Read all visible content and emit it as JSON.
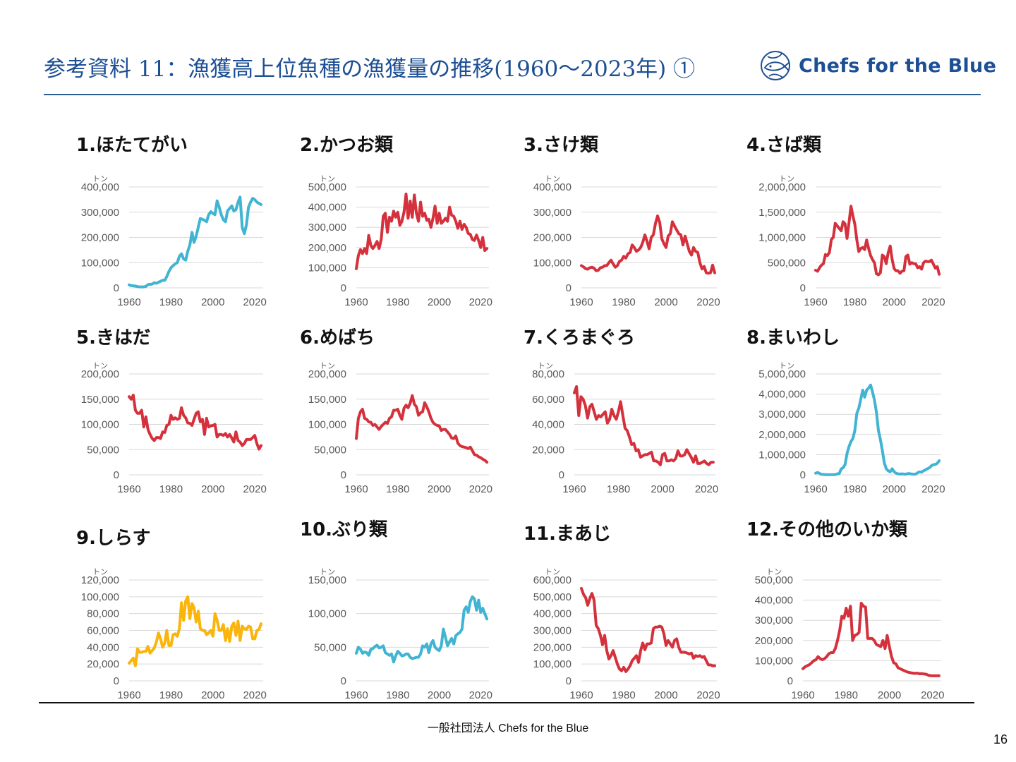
{
  "page": {
    "title": "参考資料 11：漁獲高上位魚種の漁獲量の推移(1960～2023年) ①",
    "logo_text": "Chefs for the Blue",
    "logo_icon": "fish-circle-logo-icon",
    "footer": "一般社団法人 Chefs for the Blue",
    "page_number": "16"
  },
  "colors": {
    "title": "#1d4f94",
    "teal": "#40b4d2",
    "red": "#d4313c",
    "yellow": "#f9b50c",
    "grid": "#d9d9d9",
    "tick": "#595959"
  },
  "chart_data": [
    {
      "type": "line",
      "title": "1.ほたてがい",
      "ylabel": "トン",
      "xlabel": "",
      "color": "teal",
      "ylim": [
        0,
        400000
      ],
      "yticks": [
        0,
        100000,
        200000,
        300000,
        400000
      ],
      "yticklabels": [
        "0",
        "100,000",
        "200,000",
        "300,000",
        "400,000"
      ],
      "xticks": [
        1960,
        1980,
        2000,
        2020
      ],
      "grid": true,
      "x_start": 1960,
      "values": [
        12000,
        9000,
        8000,
        7000,
        5000,
        4000,
        4000,
        4000,
        6000,
        13000,
        14000,
        15000,
        20000,
        18000,
        22000,
        26000,
        30000,
        30000,
        45000,
        65000,
        80000,
        88000,
        95000,
        100000,
        125000,
        135000,
        115000,
        110000,
        145000,
        170000,
        220000,
        180000,
        205000,
        240000,
        275000,
        272000,
        268000,
        262000,
        290000,
        302000,
        295000,
        290000,
        345000,
        320000,
        290000,
        270000,
        262000,
        305000,
        315000,
        325000,
        305000,
        310000,
        340000,
        360000,
        240000,
        215000,
        250000,
        320000,
        340000,
        355000,
        350000,
        340000,
        335000,
        330000
      ]
    },
    {
      "type": "line",
      "title": "2.かつお類",
      "ylabel": "トン",
      "xlabel": "",
      "color": "red",
      "ylim": [
        0,
        500000
      ],
      "yticks": [
        0,
        100000,
        200000,
        300000,
        400000,
        500000
      ],
      "yticklabels": [
        "0",
        "100,000",
        "200,000",
        "300,000",
        "400,000",
        "500,000"
      ],
      "xticks": [
        1960,
        1980,
        2000,
        2020
      ],
      "grid": true,
      "x_start": 1960,
      "values": [
        95000,
        160000,
        190000,
        170000,
        195000,
        170000,
        260000,
        210000,
        195000,
        210000,
        230000,
        195000,
        240000,
        355000,
        370000,
        275000,
        350000,
        330000,
        380000,
        350000,
        375000,
        310000,
        330000,
        375000,
        465000,
        345000,
        430000,
        350000,
        460000,
        370000,
        330000,
        425000,
        355000,
        370000,
        335000,
        340000,
        300000,
        345000,
        405000,
        320000,
        370000,
        320000,
        330000,
        345000,
        330000,
        400000,
        360000,
        355000,
        330000,
        295000,
        330000,
        290000,
        315000,
        300000,
        270000,
        265000,
        240000,
        235000,
        262000,
        235000,
        200000,
        250000,
        185000,
        195000
      ]
    },
    {
      "type": "line",
      "title": "3.さけ類",
      "ylabel": "トン",
      "xlabel": "",
      "color": "red",
      "ylim": [
        0,
        400000
      ],
      "yticks": [
        0,
        100000,
        200000,
        300000,
        400000
      ],
      "yticklabels": [
        "0",
        "100,000",
        "200,000",
        "300,000",
        "400,000"
      ],
      "xticks": [
        1960,
        1980,
        2000,
        2020
      ],
      "grid": true,
      "x_start": 1960,
      "values": [
        88000,
        83000,
        76000,
        74000,
        80000,
        82000,
        78000,
        68000,
        70000,
        80000,
        82000,
        88000,
        88000,
        100000,
        110000,
        95000,
        82000,
        88000,
        105000,
        110000,
        125000,
        118000,
        135000,
        140000,
        170000,
        160000,
        145000,
        150000,
        160000,
        180000,
        210000,
        185000,
        155000,
        200000,
        210000,
        255000,
        285000,
        260000,
        195000,
        175000,
        160000,
        205000,
        215000,
        262000,
        245000,
        230000,
        215000,
        210000,
        170000,
        205000,
        175000,
        145000,
        130000,
        160000,
        145000,
        140000,
        100000,
        75000,
        85000,
        60000,
        58000,
        60000,
        90000,
        60000
      ]
    },
    {
      "type": "line",
      "title": "4.さば類",
      "ylabel": "トン",
      "xlabel": "",
      "color": "red",
      "ylim": [
        0,
        2000000
      ],
      "yticks": [
        0,
        500000,
        1000000,
        1500000,
        2000000
      ],
      "yticklabels": [
        "0",
        "500,000",
        "1,000,000",
        "1,500,000",
        "2,000,000"
      ],
      "xticks": [
        1960,
        1980,
        2000,
        2020
      ],
      "grid": true,
      "x_start": 1960,
      "values": [
        350000,
        330000,
        400000,
        450000,
        480000,
        660000,
        640000,
        700000,
        960000,
        1000000,
        1280000,
        1230000,
        1180000,
        1130000,
        1310000,
        1270000,
        980000,
        1290000,
        1620000,
        1430000,
        1260000,
        950000,
        720000,
        780000,
        800000,
        760000,
        950000,
        780000,
        640000,
        560000,
        500000,
        280000,
        260000,
        300000,
        650000,
        620000,
        480000,
        700000,
        830000,
        560000,
        380000,
        340000,
        340000,
        290000,
        330000,
        340000,
        620000,
        650000,
        470000,
        500000,
        480000,
        480000,
        400000,
        420000,
        370000,
        500000,
        530000,
        520000,
        520000,
        550000,
        470000,
        390000,
        420000,
        270000
      ]
    },
    {
      "type": "line",
      "title": "5.きはだ",
      "ylabel": "トン",
      "xlabel": "",
      "color": "red",
      "ylim": [
        0,
        200000
      ],
      "yticks": [
        0,
        50000,
        100000,
        150000,
        200000
      ],
      "yticklabels": [
        "0",
        "50,000",
        "100,000",
        "150,000",
        "200,000"
      ],
      "xticks": [
        1960,
        1980,
        2000,
        2020
      ],
      "grid": true,
      "x_start": 1960,
      "values": [
        155000,
        150000,
        158000,
        128000,
        122000,
        122000,
        128000,
        95000,
        115000,
        90000,
        80000,
        72000,
        68000,
        74000,
        74000,
        72000,
        85000,
        84000,
        98000,
        100000,
        118000,
        110000,
        113000,
        110000,
        112000,
        133000,
        118000,
        113000,
        103000,
        102000,
        98000,
        110000,
        122000,
        125000,
        105000,
        110000,
        80000,
        112000,
        95000,
        97000,
        98000,
        100000,
        75000,
        80000,
        80000,
        78000,
        82000,
        75000,
        80000,
        73000,
        65000,
        85000,
        68000,
        65000,
        58000,
        62000,
        70000,
        70000,
        70000,
        74000,
        78000,
        62000,
        51000,
        58000
      ]
    },
    {
      "type": "line",
      "title": "6.めばち",
      "ylabel": "トン",
      "xlabel": "",
      "color": "red",
      "ylim": [
        0,
        200000
      ],
      "yticks": [
        0,
        50000,
        100000,
        150000,
        200000
      ],
      "yticklabels": [
        "0",
        "50,000",
        "100,000",
        "150,000",
        "200,000"
      ],
      "xticks": [
        1960,
        1980,
        2000,
        2020
      ],
      "grid": true,
      "x_start": 1960,
      "values": [
        72000,
        112000,
        125000,
        130000,
        112000,
        110000,
        105000,
        104000,
        98000,
        100000,
        95000,
        90000,
        96000,
        100000,
        104000,
        102000,
        112000,
        115000,
        128000,
        128000,
        130000,
        118000,
        110000,
        132000,
        138000,
        133000,
        142000,
        157000,
        140000,
        135000,
        118000,
        123000,
        125000,
        143000,
        135000,
        125000,
        112000,
        104000,
        100000,
        98000,
        97000,
        88000,
        90000,
        90000,
        85000,
        80000,
        73000,
        72000,
        77000,
        63000,
        58000,
        56000,
        55000,
        54000,
        52000,
        55000,
        48000,
        40000,
        39000,
        36000,
        34000,
        31000,
        29000,
        25000
      ]
    },
    {
      "type": "line",
      "title": "7.くろまぐろ",
      "ylabel": "トン",
      "xlabel": "",
      "color": "red",
      "ylim": [
        0,
        80000
      ],
      "yticks": [
        0,
        20000,
        40000,
        60000,
        80000
      ],
      "yticklabels": [
        "0",
        "20,000",
        "40,000",
        "60,000",
        "80,000"
      ],
      "xticks": [
        1960,
        1980,
        2000,
        2020
      ],
      "grid": true,
      "x_start": 1960,
      "values": [
        65000,
        70000,
        47000,
        62000,
        60000,
        55000,
        45000,
        54000,
        56000,
        50000,
        44000,
        47000,
        46000,
        48000,
        50000,
        41000,
        44000,
        52000,
        47000,
        44000,
        50000,
        58000,
        47000,
        37000,
        35000,
        30000,
        24000,
        25000,
        19000,
        20000,
        14000,
        15000,
        16000,
        16000,
        17000,
        18000,
        11000,
        11000,
        10000,
        8000,
        16000,
        17000,
        11000,
        11000,
        12000,
        11000,
        13000,
        19000,
        15000,
        15000,
        16000,
        20000,
        17000,
        14000,
        10000,
        15000,
        9000,
        9000,
        10000,
        11000,
        9000,
        8000,
        10000,
        10000
      ]
    },
    {
      "type": "line",
      "title": "8.まいわし",
      "ylabel": "トン",
      "xlabel": "",
      "color": "teal",
      "ylim": [
        0,
        5000000
      ],
      "yticks": [
        0,
        1000000,
        2000000,
        3000000,
        4000000,
        5000000
      ],
      "yticklabels": [
        "0",
        "1,000,000",
        "2,000,000",
        "3,000,000",
        "4,000,000",
        "5,000,000"
      ],
      "xticks": [
        1960,
        1980,
        2000,
        2020
      ],
      "grid": true,
      "x_start": 1960,
      "values": [
        80000,
        120000,
        70000,
        20000,
        20000,
        10000,
        10000,
        10000,
        10000,
        10000,
        15000,
        50000,
        60000,
        290000,
        350000,
        500000,
        1050000,
        1400000,
        1650000,
        1800000,
        2200000,
        3050000,
        3300000,
        3750000,
        4200000,
        3850000,
        4200000,
        4300000,
        4450000,
        4100000,
        3700000,
        3100000,
        2200000,
        1750000,
        1200000,
        600000,
        300000,
        200000,
        150000,
        300000,
        150000,
        80000,
        50000,
        40000,
        50000,
        40000,
        30000,
        60000,
        60000,
        40000,
        30000,
        40000,
        100000,
        150000,
        130000,
        200000,
        250000,
        300000,
        350000,
        450000,
        500000,
        520000,
        570000,
        700000
      ]
    },
    {
      "type": "line",
      "title": "9.しらす",
      "ylabel": "トン",
      "xlabel": "",
      "color": "yellow",
      "ylim": [
        0,
        120000
      ],
      "yticks": [
        0,
        20000,
        40000,
        60000,
        80000,
        100000,
        120000
      ],
      "yticklabels": [
        "0",
        "20,000",
        "40,000",
        "60,000",
        "80,000",
        "100,000",
        "120,000"
      ],
      "xticks": [
        1960,
        1980,
        2000,
        2020
      ],
      "grid": true,
      "x_start": 1960,
      "values": [
        21000,
        24000,
        27000,
        18000,
        38000,
        34000,
        34000,
        35000,
        35000,
        41000,
        33000,
        36000,
        39000,
        46000,
        57000,
        50000,
        40000,
        45000,
        60000,
        42000,
        42000,
        55000,
        56000,
        53000,
        62000,
        93000,
        72000,
        95000,
        100000,
        74000,
        92000,
        87000,
        70000,
        83000,
        62000,
        60000,
        60000,
        55000,
        57000,
        60000,
        53000,
        80000,
        72000,
        60000,
        60000,
        67000,
        48000,
        62000,
        47000,
        65000,
        69000,
        54000,
        71000,
        48000,
        65000,
        62000,
        61000,
        65000,
        64000,
        50000,
        50000,
        60000,
        61000,
        68000
      ]
    },
    {
      "type": "line",
      "title": "10.ぶり類",
      "ylabel": "トン",
      "xlabel": "",
      "color": "teal",
      "ylim": [
        0,
        150000
      ],
      "yticks": [
        0,
        50000,
        100000,
        150000
      ],
      "yticklabels": [
        "0",
        "50,000",
        "100,000",
        "150,000"
      ],
      "xticks": [
        1960,
        1980,
        2000,
        2020
      ],
      "grid": true,
      "x_start": 1960,
      "values": [
        41000,
        50000,
        47000,
        41000,
        43000,
        42000,
        38000,
        47000,
        48000,
        51000,
        53000,
        49000,
        50000,
        52000,
        42000,
        40000,
        38000,
        40000,
        28000,
        37000,
        44000,
        41000,
        37000,
        38000,
        40000,
        40000,
        35000,
        33000,
        34000,
        35000,
        35000,
        40000,
        52000,
        50000,
        55000,
        42000,
        55000,
        60000,
        50000,
        47000,
        45000,
        52000,
        77000,
        65000,
        52000,
        58000,
        63000,
        55000,
        67000,
        70000,
        72000,
        77000,
        105000,
        110000,
        102000,
        118000,
        125000,
        122000,
        105000,
        120000,
        102000,
        108000,
        100000,
        92000
      ]
    },
    {
      "type": "line",
      "title": "11.まあじ",
      "ylabel": "トン",
      "xlabel": "",
      "color": "red",
      "ylim": [
        0,
        600000
      ],
      "yticks": [
        0,
        100000,
        200000,
        300000,
        400000,
        500000,
        600000
      ],
      "yticklabels": [
        "0",
        "100,000",
        "200,000",
        "300,000",
        "400,000",
        "500,000",
        "600,000"
      ],
      "xticks": [
        1960,
        1980,
        2000,
        2020
      ],
      "grid": true,
      "x_start": 1960,
      "values": [
        550000,
        515000,
        495000,
        450000,
        490000,
        520000,
        480000,
        330000,
        310000,
        270000,
        215000,
        270000,
        180000,
        130000,
        150000,
        180000,
        140000,
        100000,
        70000,
        60000,
        80000,
        55000,
        70000,
        90000,
        120000,
        135000,
        150000,
        110000,
        180000,
        225000,
        185000,
        220000,
        220000,
        225000,
        310000,
        320000,
        320000,
        325000,
        320000,
        280000,
        210000,
        240000,
        220000,
        200000,
        240000,
        250000,
        200000,
        170000,
        170000,
        170000,
        165000,
        160000,
        165000,
        135000,
        150000,
        145000,
        150000,
        140000,
        145000,
        120000,
        95000,
        95000,
        90000,
        90000
      ]
    },
    {
      "type": "line",
      "title": "12.その他のいか類",
      "ylabel": "トン",
      "xlabel": "",
      "color": "red",
      "ylim": [
        0,
        500000
      ],
      "yticks": [
        0,
        100000,
        200000,
        300000,
        400000,
        500000
      ],
      "yticklabels": [
        "0",
        "100,000",
        "200,000",
        "300,000",
        "400,000",
        "500,000"
      ],
      "xticks": [
        1960,
        1980,
        2000,
        2020
      ],
      "grid": true,
      "x_start": 1960,
      "values": [
        60000,
        70000,
        75000,
        80000,
        90000,
        100000,
        105000,
        120000,
        110000,
        105000,
        110000,
        120000,
        135000,
        140000,
        140000,
        160000,
        200000,
        250000,
        320000,
        310000,
        360000,
        320000,
        370000,
        200000,
        225000,
        230000,
        240000,
        385000,
        370000,
        365000,
        210000,
        210000,
        210000,
        200000,
        180000,
        175000,
        170000,
        200000,
        160000,
        225000,
        170000,
        120000,
        90000,
        85000,
        65000,
        60000,
        55000,
        50000,
        45000,
        42000,
        40000,
        38000,
        37000,
        38000,
        35000,
        36000,
        34000,
        33000,
        28000,
        26000,
        25000,
        25000,
        25000,
        25000
      ]
    }
  ]
}
